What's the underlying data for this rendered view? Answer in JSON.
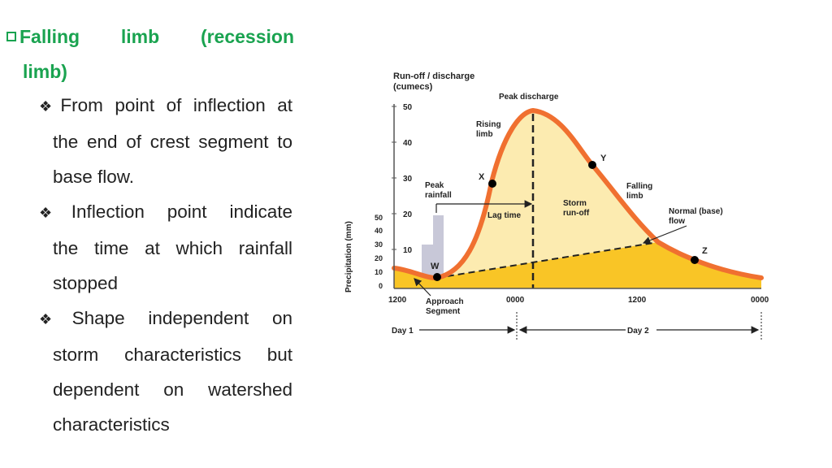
{
  "heading": {
    "words": [
      "Falling",
      "limb",
      "(recession"
    ],
    "line2": "limb)"
  },
  "bullets": [
    {
      "line1": "From point of inflection at",
      "rest": "the end of crest segment to base flow."
    },
    {
      "line1": "Inflection point indicate",
      "rest": "the time at which rainfall stopped"
    },
    {
      "line1": "Shape independent on",
      "rest": "storm characteristics but dependent on watershed characteristics"
    }
  ],
  "diagram": {
    "y_axis_title_1": "Run-off / discharge",
    "y_axis_title_2": "(cumecs)",
    "discharge_ticks": [
      "50",
      "40",
      "30",
      "20",
      "10"
    ],
    "precip_axis_title": "Precipitation (mm)",
    "precip_ticks": [
      "50",
      "40",
      "30",
      "20",
      "10",
      "0"
    ],
    "x_ticks": [
      "1200",
      "0000",
      "1200",
      "0000"
    ],
    "day1": "Day 1",
    "day2": "Day 2",
    "labels": {
      "peak_discharge": "Peak discharge",
      "rising_limb_1": "Rising",
      "rising_limb_2": "limb",
      "peak_rainfall_1": "Peak",
      "peak_rainfall_2": "rainfall",
      "lag_time": "Lag time",
      "storm_runoff_1": "Storm",
      "storm_runoff_2": "run-off",
      "falling_limb_1": "Falling",
      "falling_limb_2": "limb",
      "base_flow_1": "Normal (base)",
      "base_flow_2": "flow",
      "approach_1": "Approach",
      "approach_2": "Segment"
    },
    "points": {
      "w": "W",
      "x": "X",
      "y": "Y",
      "z": "Z"
    },
    "colors": {
      "curve": "#f07030",
      "runoff": "#fcebb0",
      "baseflow": "#f9c526",
      "rain": "#c8c8d8",
      "heading": "#1aa350"
    }
  }
}
